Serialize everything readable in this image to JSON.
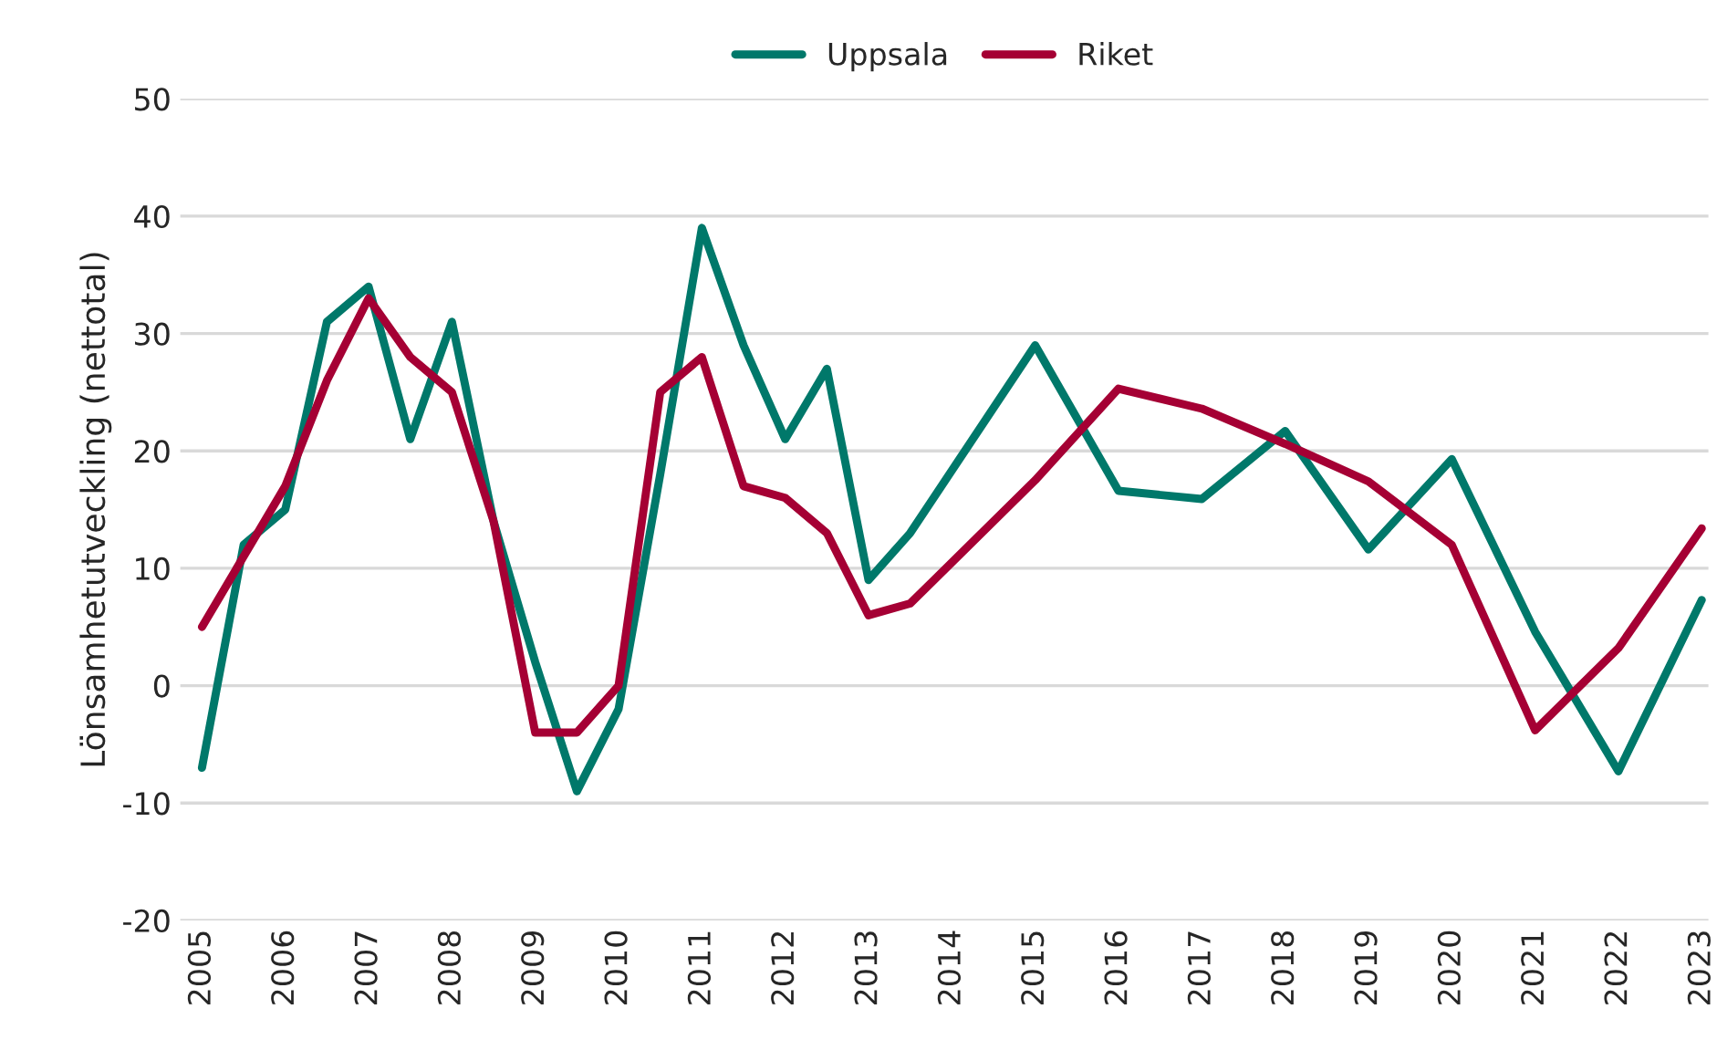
{
  "chart_data": {
    "type": "line",
    "ylabel": "Lönsamhetutveckling (nettotal)",
    "x": [
      2005,
      2005.5,
      2006,
      2006.5,
      2007,
      2007.5,
      2008,
      2008.5,
      2009,
      2009.5,
      2010,
      2010.5,
      2011,
      2011.5,
      2012,
      2012.5,
      2013,
      2013.5,
      2015,
      2016,
      2017,
      2018,
      2019,
      2020,
      2021,
      2022,
      2023
    ],
    "series": [
      {
        "name": "Uppsala",
        "color": "#00786a",
        "values": [
          -7,
          12,
          15,
          31,
          34,
          21,
          31,
          14,
          2,
          -9,
          -2,
          18,
          39,
          29,
          21,
          27,
          9,
          13,
          29,
          16.6,
          15.9,
          21.7,
          11.6,
          19.3,
          4.6,
          -7.3,
          7.3
        ]
      },
      {
        "name": "Riket",
        "color": "#a50034",
        "values": [
          5,
          11,
          17,
          26,
          33,
          28,
          25,
          14,
          -4,
          -4,
          0,
          25,
          28,
          17,
          16,
          13,
          6,
          7,
          17.5,
          25.3,
          23.6,
          20.6,
          17.4,
          12,
          -3.8,
          3.2,
          13.4
        ]
      }
    ],
    "xlim": [
      2004.74,
      2023.08
    ],
    "xticks": [
      2005,
      2006,
      2007,
      2008,
      2009,
      2010,
      2011,
      2012,
      2013,
      2014,
      2015,
      2016,
      2017,
      2018,
      2019,
      2020,
      2021,
      2022,
      2023
    ],
    "ylim": [
      -20,
      50
    ],
    "yticks": [
      -20,
      -10,
      0,
      10,
      20,
      30,
      40,
      50
    ],
    "grid": "y",
    "legend": "top",
    "line_style": "solid",
    "marker": "none"
  }
}
